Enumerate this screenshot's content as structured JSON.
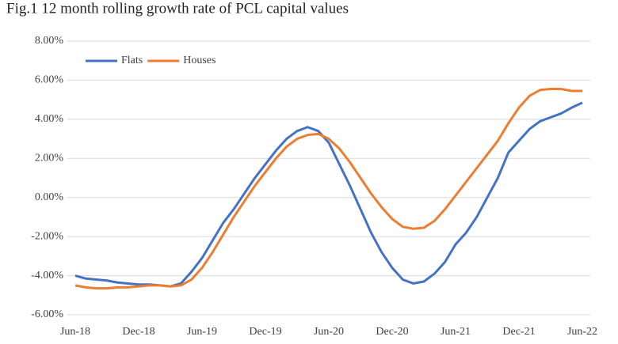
{
  "chart_data": {
    "type": "line",
    "title": "Fig.1 12 month rolling growth rate of PCL capital values",
    "categories": [
      "Jun-18",
      null,
      null,
      null,
      null,
      null,
      "Dec-18",
      null,
      null,
      null,
      null,
      null,
      "Jun-19",
      null,
      null,
      null,
      null,
      null,
      "Dec-19",
      null,
      null,
      null,
      null,
      null,
      "Jun-20",
      null,
      null,
      null,
      null,
      null,
      "Dec-20",
      null,
      null,
      null,
      null,
      null,
      "Jun-21",
      null,
      null,
      null,
      null,
      null,
      "Dec-21",
      null,
      null,
      null,
      null,
      null,
      "Jun-22"
    ],
    "series": [
      {
        "name": "Flats",
        "color": "#4472c4",
        "values": [
          -4.0,
          -4.15,
          -4.2,
          -4.25,
          -4.35,
          -4.4,
          -4.45,
          -4.45,
          -4.5,
          -4.55,
          -4.4,
          -3.8,
          -3.1,
          -2.2,
          -1.3,
          -0.6,
          0.2,
          1.0,
          1.7,
          2.4,
          3.0,
          3.4,
          3.6,
          3.4,
          2.8,
          1.7,
          0.6,
          -0.6,
          -1.8,
          -2.8,
          -3.6,
          -4.2,
          -4.4,
          -4.3,
          -3.9,
          -3.3,
          -2.4,
          -1.8,
          -1.0,
          0.0,
          1.0,
          2.3,
          2.9,
          3.5,
          3.9,
          4.1,
          4.3,
          4.6,
          4.85
        ]
      },
      {
        "name": "Houses",
        "color": "#ed7d31",
        "values": [
          -4.5,
          -4.6,
          -4.65,
          -4.65,
          -4.6,
          -4.6,
          -4.55,
          -4.5,
          -4.5,
          -4.55,
          -4.5,
          -4.2,
          -3.6,
          -2.8,
          -1.9,
          -1.0,
          -0.2,
          0.6,
          1.3,
          2.0,
          2.6,
          3.0,
          3.2,
          3.25,
          3.0,
          2.5,
          1.8,
          1.0,
          0.2,
          -0.5,
          -1.1,
          -1.5,
          -1.6,
          -1.55,
          -1.2,
          -0.6,
          0.1,
          0.8,
          1.5,
          2.2,
          2.9,
          3.8,
          4.6,
          5.2,
          5.5,
          5.55,
          5.55,
          5.45,
          5.45
        ]
      }
    ],
    "ylim": [
      -6,
      8
    ],
    "yticks": [
      {
        "value": -6,
        "label": "-6.00%"
      },
      {
        "value": -4,
        "label": "-4.00%"
      },
      {
        "value": -2,
        "label": "-2.00%"
      },
      {
        "value": 0,
        "label": "0.00%"
      },
      {
        "value": 2,
        "label": "2.00%"
      },
      {
        "value": 4,
        "label": "4.00%"
      },
      {
        "value": 6,
        "label": "6.00%"
      },
      {
        "value": 8,
        "label": "8.00%"
      }
    ],
    "grid": true,
    "legend": "top-left"
  }
}
